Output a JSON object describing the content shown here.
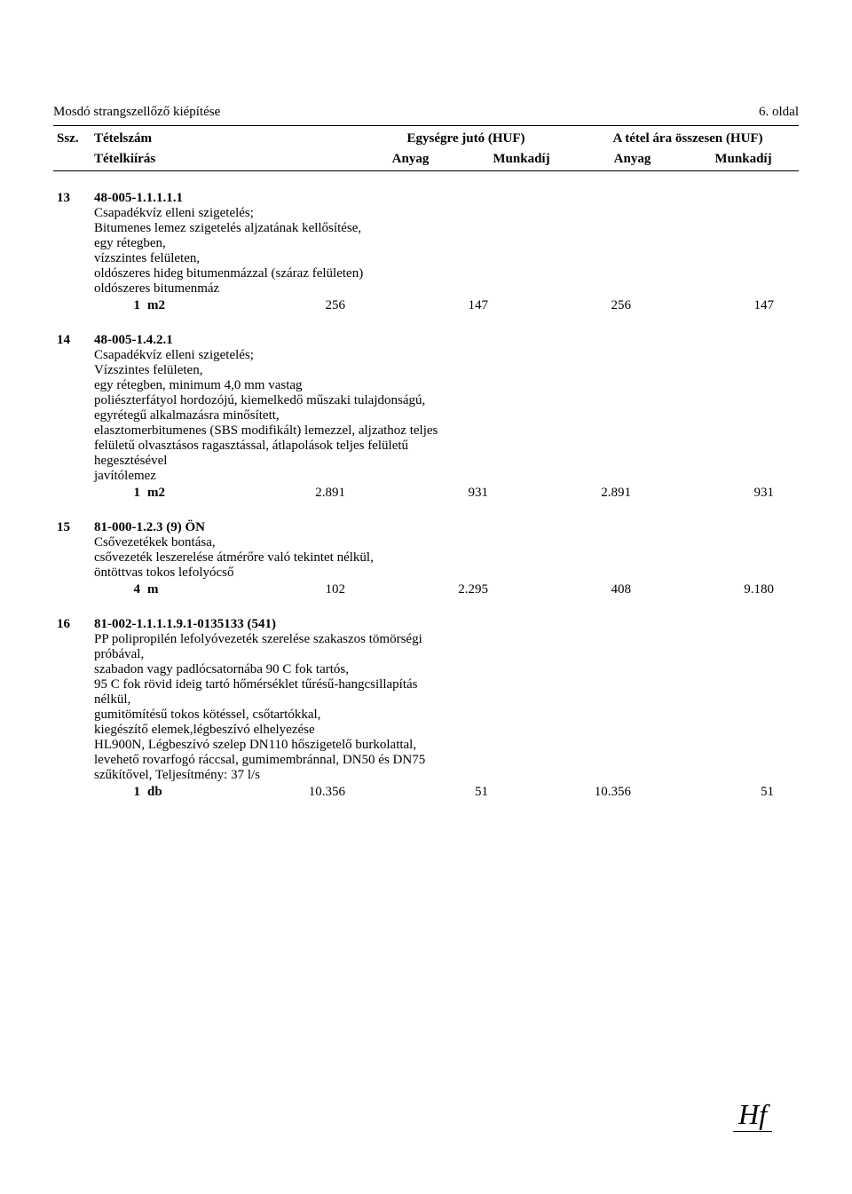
{
  "page": {
    "title_left": "Mosdó strangszellőző kiépítése",
    "title_right": "6. oldal"
  },
  "columns": {
    "ssz": "Ssz.",
    "tetelszam": "Tételszám",
    "tetelkiiras": "Tételkiírás",
    "unit_group": "Egységre jutó (HUF)",
    "total_group": "A tétel ára összesen (HUF)",
    "anyag": "Anyag",
    "munkadij": "Munkadíj"
  },
  "items": [
    {
      "ssz": "13",
      "code": "48-005-1.1.1.1.1",
      "lines": [
        "Csapadékvíz elleni szigetelés;",
        "Bitumenes lemez szigetelés aljzatának kellősítése,",
        "egy rétegben,",
        "vízszintes felületen,",
        "oldószeres hideg bitumenmázzal (száraz felületen)",
        "oldószeres bitumenmáz"
      ],
      "qty": "1",
      "unit": "m2",
      "unit_anyag": "256",
      "unit_munkadij": "147",
      "total_anyag": "256",
      "total_munkadij": "147"
    },
    {
      "ssz": "14",
      "code": "48-005-1.4.2.1",
      "lines": [
        "Csapadékvíz elleni szigetelés;",
        "Vízszintes felületen,",
        "egy rétegben, minimum 4,0 mm vastag",
        "poliészterfátyol hordozójú, kiemelkedő műszaki tulajdonságú,",
        "egyrétegű alkalmazásra minősített,",
        "elasztomerbitumenes (SBS modifikált) lemezzel, aljzathoz teljes",
        "felületű olvasztásos ragasztással, átlapolások teljes felületű",
        "hegesztésével",
        "javítólemez"
      ],
      "qty": "1",
      "unit": "m2",
      "unit_anyag": "2.891",
      "unit_munkadij": "931",
      "total_anyag": "2.891",
      "total_munkadij": "931"
    },
    {
      "ssz": "15",
      "code": "81-000-1.2.3 (9) ÖN",
      "lines": [
        "Csővezetékek bontása,",
        "csővezeték leszerelése átmérőre való tekintet nélkül,",
        "öntöttvas tokos lefolyócső"
      ],
      "qty": "4",
      "unit": "m",
      "unit_anyag": "102",
      "unit_munkadij": "2.295",
      "total_anyag": "408",
      "total_munkadij": "9.180"
    },
    {
      "ssz": "16",
      "code": "81-002-1.1.1.1.9.1-0135133 (541)",
      "lines": [
        "PP polipropilén lefolyóvezeték szerelése szakaszos tömörségi",
        "próbával,",
        "szabadon vagy padlócsatornába 90 C fok tartós,",
        "95 C fok rövid ideig tartó hőmérséklet tűrésű-hangcsillapítás",
        "nélkül,",
        "gumitömítésű tokos kötéssel, csőtartókkal,",
        "kiegészítő elemek,légbeszívó elhelyezése",
        "HL900N, Légbeszívó szelep DN110 hőszigetelő burkolattal,",
        "levehető rovarfogó ráccsal, gumimembránnal, DN50 és DN75",
        "szűkítővel, Teljesítmény: 37 l/s"
      ],
      "qty": "1",
      "unit": "db",
      "unit_anyag": "10.356",
      "unit_munkadij": "51",
      "total_anyag": "10.356",
      "total_munkadij": "51"
    }
  ]
}
